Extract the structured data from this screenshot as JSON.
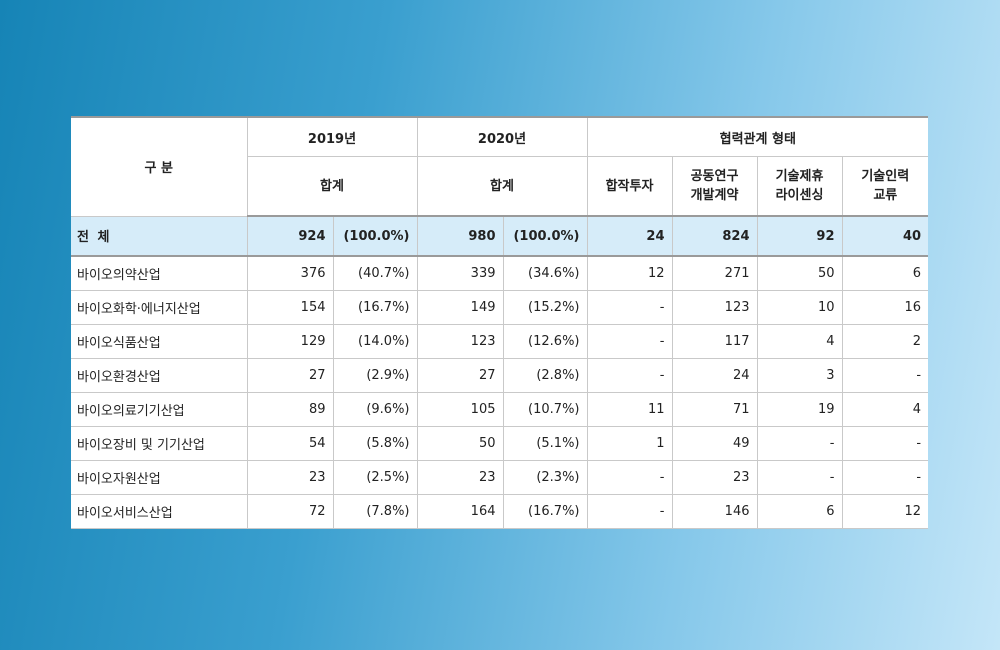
{
  "header": {
    "category": "구 분",
    "year2019": "2019년",
    "year2020": "2020년",
    "relation": "협력관계 형태",
    "sum2019": "합계",
    "sum2020": "합계",
    "types": [
      "합작투자",
      "공동연구\n개발계약",
      "기술제휴\n라이센싱",
      "기술인력\n교류"
    ]
  },
  "total": {
    "label": "전 체",
    "v2019": "924",
    "p2019": "(100.0%)",
    "v2020": "980",
    "p2020": "(100.0%)",
    "jv": "24",
    "rnd": "824",
    "lic": "92",
    "hr": "40"
  },
  "rows": [
    {
      "label": "바이오의약산업",
      "v2019": "376",
      "p2019": "(40.7%)",
      "v2020": "339",
      "p2020": "(34.6%)",
      "jv": "12",
      "rnd": "271",
      "lic": "50",
      "hr": "6"
    },
    {
      "label": "바이오화학·에너지산업",
      "v2019": "154",
      "p2019": "(16.7%)",
      "v2020": "149",
      "p2020": "(15.2%)",
      "jv": "-",
      "rnd": "123",
      "lic": "10",
      "hr": "16"
    },
    {
      "label": "바이오식품산업",
      "v2019": "129",
      "p2019": "(14.0%)",
      "v2020": "123",
      "p2020": "(12.6%)",
      "jv": "-",
      "rnd": "117",
      "lic": "4",
      "hr": "2"
    },
    {
      "label": "바이오환경산업",
      "v2019": "27",
      "p2019": "(2.9%)",
      "v2020": "27",
      "p2020": "(2.8%)",
      "jv": "-",
      "rnd": "24",
      "lic": "3",
      "hr": "-"
    },
    {
      "label": "바이오의료기기산업",
      "v2019": "89",
      "p2019": "(9.6%)",
      "v2020": "105",
      "p2020": "(10.7%)",
      "jv": "11",
      "rnd": "71",
      "lic": "19",
      "hr": "4"
    },
    {
      "label": "바이오장비 및 기기산업",
      "v2019": "54",
      "p2019": "(5.8%)",
      "v2020": "50",
      "p2020": "(5.1%)",
      "jv": "1",
      "rnd": "49",
      "lic": "-",
      "hr": "-"
    },
    {
      "label": "바이오자원산업",
      "v2019": "23",
      "p2019": "(2.5%)",
      "v2020": "23",
      "p2020": "(2.3%)",
      "jv": "-",
      "rnd": "23",
      "lic": "-",
      "hr": "-"
    },
    {
      "label": "바이오서비스산업",
      "v2019": "72",
      "p2019": "(7.8%)",
      "v2020": "164",
      "p2020": "(16.7%)",
      "jv": "-",
      "rnd": "146",
      "lic": "6",
      "hr": "12"
    }
  ]
}
